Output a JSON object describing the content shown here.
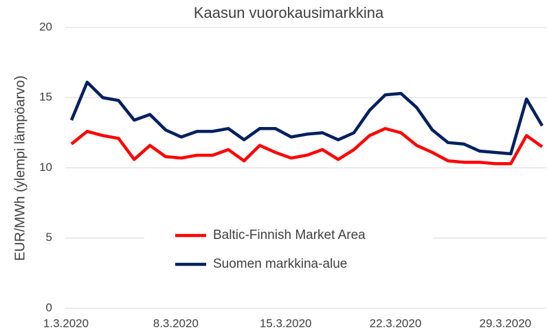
{
  "chart_data": {
    "type": "line",
    "title": "Kaasun vuorokausimarkkina",
    "y_label": "EUR/MWh (ylempi lämpöarvo)",
    "categories": [
      "1.3.2020",
      null,
      null,
      null,
      null,
      null,
      null,
      "8.3.2020",
      null,
      null,
      null,
      null,
      null,
      null,
      "15.3.2020",
      null,
      null,
      null,
      null,
      null,
      null,
      "22.3.2020",
      null,
      null,
      null,
      null,
      null,
      null,
      "29.3.2020",
      null,
      null
    ],
    "series": [
      {
        "name": "Baltic-Finnish Market Area",
        "color": "#ff0000",
        "values": [
          11.7,
          12.6,
          12.3,
          12.1,
          10.6,
          11.6,
          10.8,
          10.7,
          10.9,
          10.9,
          11.3,
          10.5,
          11.6,
          11.1,
          10.7,
          10.9,
          11.3,
          10.6,
          11.3,
          12.3,
          12.8,
          12.5,
          11.6,
          11.1,
          10.5,
          10.4,
          10.4,
          10.3,
          10.3,
          12.3,
          11.5
        ]
      },
      {
        "name": "Suomen markkina-alue",
        "color": "#002060",
        "values": [
          13.4,
          16.1,
          15.0,
          14.8,
          13.4,
          13.8,
          12.7,
          12.2,
          12.6,
          12.6,
          12.8,
          12.0,
          12.8,
          12.8,
          12.2,
          12.4,
          12.5,
          12.0,
          12.5,
          14.1,
          15.2,
          15.3,
          14.3,
          12.7,
          11.8,
          11.7,
          11.2,
          11.1,
          11.0,
          14.9,
          13.0
        ]
      }
    ],
    "ylim": [
      0,
      20
    ],
    "yticks": [
      0,
      5,
      10,
      15,
      20
    ],
    "grid": true
  }
}
